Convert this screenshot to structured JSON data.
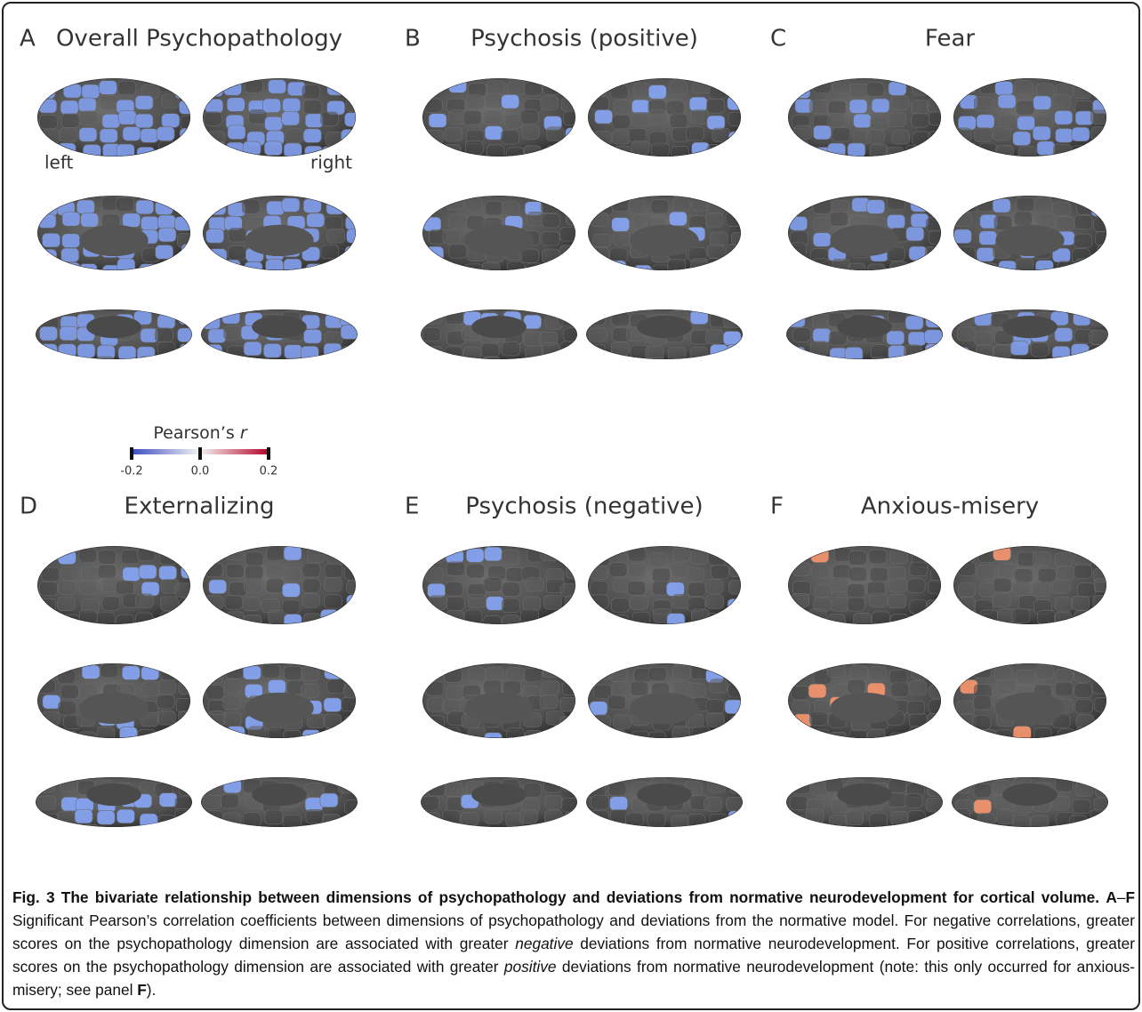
{
  "panels": [
    {
      "letter": "A",
      "title": "Overall Psychopathology",
      "hemisphere_labels": [
        "left",
        "right"
      ]
    },
    {
      "letter": "B",
      "title": "Psychosis (positive)"
    },
    {
      "letter": "C",
      "title": "Fear"
    },
    {
      "letter": "D",
      "title": "Externalizing"
    },
    {
      "letter": "E",
      "title": "Psychosis (negative)"
    },
    {
      "letter": "F",
      "title": "Anxious-misery"
    }
  ],
  "colorbar": {
    "title": "Pearson’s ",
    "title_italic": "r",
    "lim": [
      -0.2,
      0.2
    ],
    "ticks": [
      -0.2,
      {
        "value": 0,
        "label": "0.0"
      },
      0.2
    ],
    "colors": [
      "#3b4cc0",
      "#f4f4f4",
      "#b40426"
    ]
  },
  "caption": [
    {
      "text": "Fig. 3 The bivariate relationship between dimensions of psychopathology and deviations from normative neurodevelopment for cortical volume.",
      "style": "bold"
    },
    {
      "text": "A",
      "style": "bold"
    },
    {
      "text": "–",
      "style": "normal"
    },
    {
      "text": "F",
      "style": "bold"
    },
    {
      "text": " Significant Pearson’s correlation coefficients between dimensions of psychopathology and deviations from the normative model. For negative correlations, greater scores on the psychopathology dimension are associated with greater ",
      "style": "normal"
    },
    {
      "text": "negative",
      "style": "italic"
    },
    {
      "text": " deviations from normative neurodevelopment. For positive correlations, greater scores on the psychopathology dimension are associated with greater ",
      "style": "normal"
    },
    {
      "text": "positive",
      "style": "italic"
    },
    {
      "text": " deviations from normative neurodevelopment (note: this only occurred for anxious-misery; see panel ",
      "style": "normal"
    },
    {
      "text": "F",
      "style": "bold"
    },
    {
      "text": ").",
      "style": "normal"
    }
  ]
}
